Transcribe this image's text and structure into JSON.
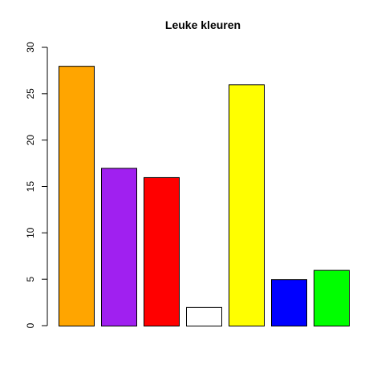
{
  "chart_data": {
    "type": "bar",
    "title": "Leuke kleuren",
    "xlabel": "",
    "ylabel": "",
    "ylim": [
      0,
      30
    ],
    "yticks": [
      0,
      5,
      10,
      15,
      20,
      25,
      30
    ],
    "values": [
      28,
      17,
      16,
      2,
      26,
      5,
      6
    ],
    "colors": [
      "#FFA500",
      "#A020F0",
      "#FF0000",
      "#FFFFFF",
      "#FFFF00",
      "#0000FF",
      "#00FF00"
    ],
    "grid": false,
    "legend": "none"
  }
}
